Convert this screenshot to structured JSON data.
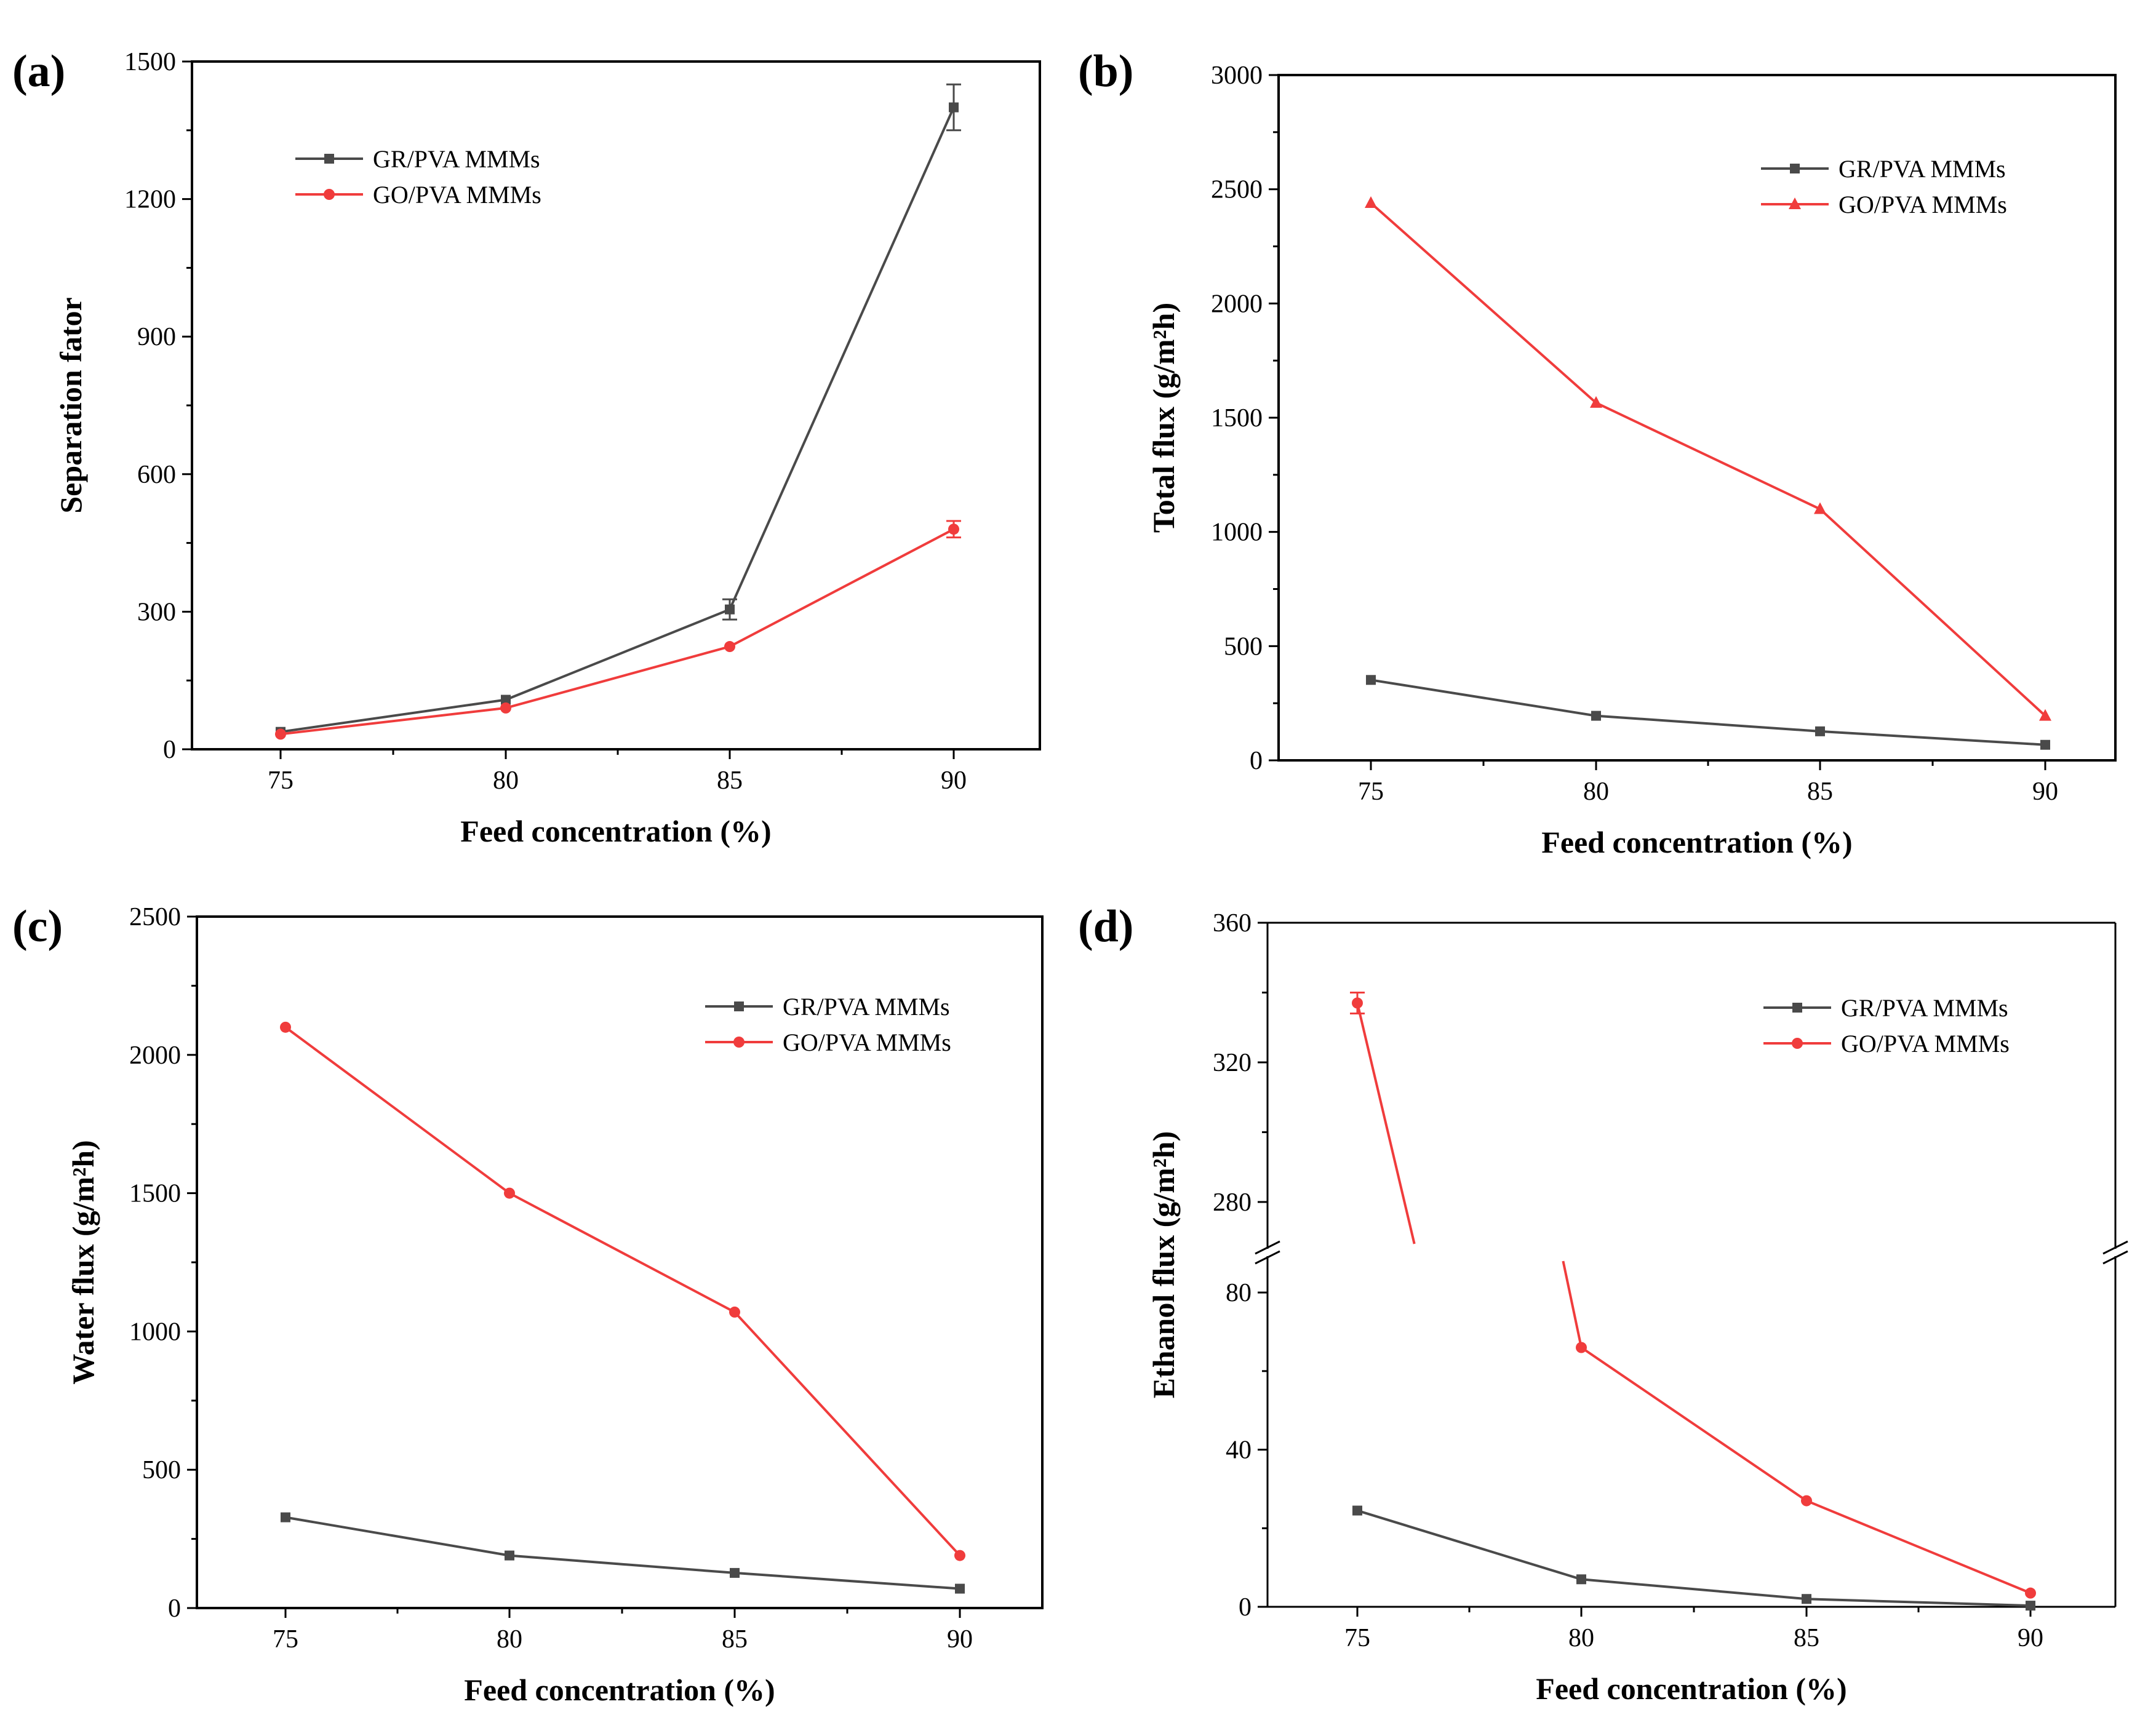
{
  "chart_data": [
    {
      "panel": "(a)",
      "type": "line",
      "categories": [
        "75",
        "80",
        "85",
        "90"
      ],
      "x": [
        75,
        80,
        85,
        90
      ],
      "xlabel": "Feed concentration (%)",
      "ylabel": "Separation fator",
      "ylim": [
        0,
        1500
      ],
      "yticks": [
        0,
        300,
        600,
        900,
        1200,
        1500
      ],
      "yticklabels": [
        "0",
        "300",
        "600",
        "900",
        "1200",
        "1500"
      ],
      "legend_position": "top-left",
      "series": [
        {
          "name": "GR/PVA MMMs",
          "color": "#4a4a4a",
          "marker": "square",
          "values": [
            38,
            108,
            305,
            1400
          ],
          "errors": [
            0,
            0,
            22,
            50
          ]
        },
        {
          "name": "GO/PVA MMMs",
          "color": "#f03c3c",
          "marker": "circle",
          "values": [
            33,
            90,
            224,
            480
          ],
          "errors": [
            0,
            0,
            0,
            18
          ]
        }
      ]
    },
    {
      "panel": "(b)",
      "type": "line",
      "categories": [
        "75",
        "80",
        "85",
        "90"
      ],
      "x": [
        75,
        80,
        85,
        90
      ],
      "xlabel": "Feed concentration (%)",
      "ylabel": "Total flux (g/m²h)",
      "ylim": [
        0,
        3000
      ],
      "yticks": [
        0,
        500,
        1000,
        1500,
        2000,
        2500,
        3000
      ],
      "yticklabels": [
        "0",
        "500",
        "1000",
        "1500",
        "2000",
        "2500",
        "3000"
      ],
      "legend_position": "top-right",
      "series": [
        {
          "name": "GR/PVA MMMs",
          "color": "#4a4a4a",
          "marker": "square",
          "values": [
            352,
            195,
            127,
            68
          ],
          "errors": [
            0,
            0,
            0,
            0
          ]
        },
        {
          "name": "GO/PVA MMMs",
          "color": "#f03c3c",
          "marker": "triangle",
          "values": [
            2440,
            1565,
            1100,
            195
          ],
          "errors": [
            0,
            0,
            0,
            0
          ]
        }
      ]
    },
    {
      "panel": "(c)",
      "type": "line",
      "categories": [
        "75",
        "80",
        "85",
        "90"
      ],
      "x": [
        75,
        80,
        85,
        90
      ],
      "xlabel": "Feed concentration (%)",
      "ylabel": "Water flux (g/m²h)",
      "ylim": [
        0,
        2500
      ],
      "yticks": [
        0,
        500,
        1000,
        1500,
        2000,
        2500
      ],
      "yticklabels": [
        "0",
        "500",
        "1000",
        "1500",
        "2000",
        "2500"
      ],
      "legend_position": "top-right",
      "series": [
        {
          "name": "GR/PVA MMMs",
          "color": "#4a4a4a",
          "marker": "square",
          "values": [
            328,
            190,
            127,
            70
          ],
          "errors": [
            0,
            0,
            0,
            0
          ]
        },
        {
          "name": "GO/PVA MMMs",
          "color": "#f03c3c",
          "marker": "circle",
          "values": [
            2100,
            1500,
            1070,
            190
          ],
          "errors": [
            0,
            0,
            0,
            0
          ]
        }
      ]
    },
    {
      "panel": "(d)",
      "type": "line",
      "categories": [
        "75",
        "80",
        "85",
        "90"
      ],
      "x": [
        75,
        80,
        85,
        90
      ],
      "xlabel": "Feed concentration (%)",
      "ylabel": "Ethanol flux (g/m²h)",
      "ylim": [
        0,
        360
      ],
      "axis_break": {
        "lower": [
          0,
          88
        ],
        "upper": [
          268,
          360
        ]
      },
      "yticks": [
        0,
        40,
        80,
        280,
        320,
        360
      ],
      "yticklabels": [
        "0",
        "40",
        "80",
        "280",
        "320",
        "360"
      ],
      "legend_position": "top-right",
      "series": [
        {
          "name": "GR/PVA MMMs",
          "color": "#4a4a4a",
          "marker": "square",
          "values": [
            24.5,
            7,
            2,
            0.3
          ],
          "errors": [
            0,
            0,
            0,
            0
          ]
        },
        {
          "name": "GO/PVA MMMs",
          "color": "#f03c3c",
          "marker": "circle",
          "values": [
            337,
            66,
            27,
            3.5
          ],
          "errors": [
            3,
            0,
            0,
            0
          ]
        }
      ]
    }
  ]
}
